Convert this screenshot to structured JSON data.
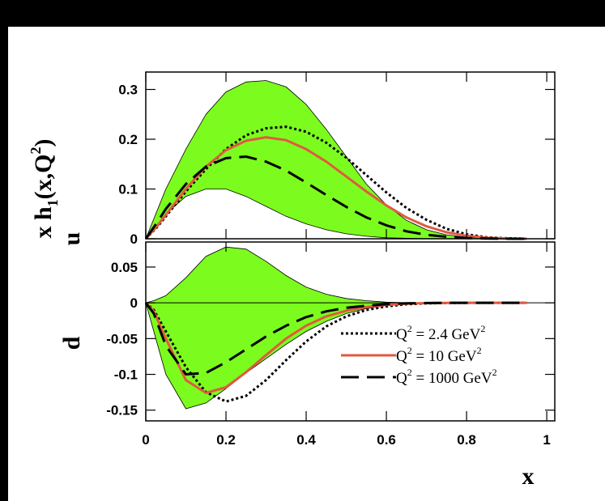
{
  "chart_data": {
    "type": "line",
    "xlabel": "x",
    "x_ticks": [
      "0",
      "0.2",
      "0.4",
      "0.6",
      "0.8",
      "1"
    ],
    "xlim": [
      0,
      1.02
    ],
    "colors": {
      "band": "#7CFC1E",
      "band_edge": "#000000",
      "q2_2_4": "#000000",
      "q2_10": "#E05A40",
      "q2_1000": "#000000"
    },
    "legend": {
      "position": "bottom-right of lower panel",
      "entries": [
        {
          "q": "Q",
          "exp": "2",
          "rest": " = 2.4 GeV",
          "rest_exp": "2",
          "style": "dotted"
        },
        {
          "q": "Q",
          "exp": "2",
          "rest": " = 10 GeV",
          "rest_exp": "2",
          "style": "solid"
        },
        {
          "q": "Q",
          "exp": "2",
          "rest": " = 1000 GeV",
          "rest_exp": "2",
          "style": "dashed"
        }
      ]
    },
    "panels": [
      {
        "id": "u",
        "ylabel_main": "x h",
        "ylabel_sub": "1",
        "ylabel_args": "(x,Q",
        "ylabel_exp": "2",
        "ylabel_close": ")",
        "ylabel_flavor": "u",
        "ylim": [
          0,
          0.335
        ],
        "y_ticks": [
          "0",
          "0.1",
          "0.2",
          "0.3"
        ],
        "band": {
          "x": [
            0,
            0.02,
            0.05,
            0.1,
            0.15,
            0.2,
            0.25,
            0.3,
            0.35,
            0.4,
            0.45,
            0.5,
            0.55,
            0.6,
            0.65,
            0.7,
            0.75,
            0.8,
            0.85,
            0.9,
            0.95
          ],
          "upper": [
            0,
            0.04,
            0.1,
            0.18,
            0.25,
            0.295,
            0.315,
            0.318,
            0.305,
            0.27,
            0.22,
            0.165,
            0.11,
            0.068,
            0.037,
            0.018,
            0.008,
            0.003,
            0.001,
            0.0003,
            0
          ],
          "lower": [
            0,
            0.02,
            0.05,
            0.085,
            0.1,
            0.1,
            0.085,
            0.065,
            0.045,
            0.03,
            0.018,
            0.01,
            0.005,
            0.002,
            0.001,
            0.0003,
            0.0001,
            0,
            0,
            0,
            0
          ]
        },
        "series": [
          {
            "key": "q2_2_4",
            "style": "dotted",
            "x": [
              0,
              0.03,
              0.05,
              0.1,
              0.15,
              0.2,
              0.25,
              0.3,
              0.35,
              0.4,
              0.45,
              0.5,
              0.55,
              0.6,
              0.65,
              0.7,
              0.75,
              0.8,
              0.85,
              0.9,
              0.95
            ],
            "y": [
              0,
              0.025,
              0.045,
              0.095,
              0.14,
              0.18,
              0.208,
              0.222,
              0.225,
              0.215,
              0.193,
              0.163,
              0.128,
              0.093,
              0.062,
              0.038,
              0.02,
              0.009,
              0.003,
              0.001,
              0
            ]
          },
          {
            "key": "q2_10",
            "style": "solid",
            "x": [
              0,
              0.03,
              0.05,
              0.1,
              0.15,
              0.2,
              0.25,
              0.3,
              0.35,
              0.4,
              0.45,
              0.5,
              0.55,
              0.6,
              0.65,
              0.7,
              0.75,
              0.8,
              0.85,
              0.9,
              0.95
            ],
            "y": [
              0,
              0.027,
              0.048,
              0.1,
              0.145,
              0.178,
              0.197,
              0.204,
              0.198,
              0.18,
              0.155,
              0.125,
              0.095,
              0.067,
              0.043,
              0.025,
              0.013,
              0.006,
              0.002,
              0.0005,
              0
            ]
          },
          {
            "key": "q2_1000",
            "style": "dashed",
            "x": [
              0,
              0.03,
              0.05,
              0.1,
              0.15,
              0.2,
              0.25,
              0.3,
              0.35,
              0.4,
              0.45,
              0.5,
              0.55,
              0.6,
              0.65,
              0.7,
              0.75,
              0.8,
              0.85,
              0.9,
              0.95
            ],
            "y": [
              0,
              0.035,
              0.06,
              0.11,
              0.145,
              0.162,
              0.165,
              0.155,
              0.137,
              0.113,
              0.088,
              0.064,
              0.043,
              0.027,
              0.015,
              0.008,
              0.004,
              0.0015,
              0.0005,
              0.0001,
              0
            ]
          }
        ]
      },
      {
        "id": "d",
        "ylabel_flavor": "d",
        "ylim": [
          -0.165,
          0.085
        ],
        "y_ticks": [
          "0.05",
          "0",
          "-0.05",
          "-0.1",
          "-0.15"
        ],
        "y_tick_values": [
          0.05,
          0,
          -0.05,
          -0.1,
          -0.15
        ],
        "band": {
          "x": [
            0,
            0.02,
            0.05,
            0.1,
            0.15,
            0.2,
            0.25,
            0.3,
            0.35,
            0.4,
            0.45,
            0.5,
            0.55,
            0.6,
            0.65,
            0.7,
            0.75,
            0.8,
            0.85,
            0.9,
            0.95
          ],
          "upper": [
            0,
            0.003,
            0.01,
            0.035,
            0.065,
            0.078,
            0.075,
            0.058,
            0.038,
            0.022,
            0.012,
            0.006,
            0.003,
            0.001,
            0.0003,
            0.0001,
            0,
            0,
            0,
            0,
            0
          ],
          "lower": [
            0,
            -0.04,
            -0.1,
            -0.148,
            -0.14,
            -0.12,
            -0.098,
            -0.078,
            -0.058,
            -0.04,
            -0.026,
            -0.015,
            -0.008,
            -0.004,
            -0.0015,
            -0.0005,
            -0.0001,
            0,
            0,
            0,
            0
          ]
        },
        "series": [
          {
            "key": "q2_2_4",
            "style": "dotted",
            "x": [
              0,
              0.02,
              0.05,
              0.1,
              0.15,
              0.2,
              0.25,
              0.3,
              0.35,
              0.4,
              0.45,
              0.5,
              0.55,
              0.6,
              0.65,
              0.7,
              0.75,
              0.8,
              0.85,
              0.9,
              0.95
            ],
            "y": [
              0,
              -0.01,
              -0.04,
              -0.09,
              -0.125,
              -0.138,
              -0.13,
              -0.108,
              -0.08,
              -0.054,
              -0.033,
              -0.019,
              -0.01,
              -0.005,
              -0.002,
              -0.0008,
              -0.0003,
              -0.0001,
              0,
              0,
              0
            ]
          },
          {
            "key": "q2_10",
            "style": "solid",
            "x": [
              0,
              0.02,
              0.05,
              0.1,
              0.15,
              0.2,
              0.25,
              0.3,
              0.35,
              0.4,
              0.45,
              0.5,
              0.55,
              0.6,
              0.65,
              0.7,
              0.75,
              0.8,
              0.85,
              0.9,
              0.95
            ],
            "y": [
              0,
              -0.012,
              -0.05,
              -0.108,
              -0.126,
              -0.118,
              -0.097,
              -0.073,
              -0.05,
              -0.032,
              -0.019,
              -0.011,
              -0.006,
              -0.003,
              -0.0012,
              -0.0004,
              -0.0001,
              0,
              0,
              0,
              0
            ]
          },
          {
            "key": "q2_1000",
            "style": "dashed",
            "x": [
              0,
              0.02,
              0.05,
              0.1,
              0.15,
              0.2,
              0.25,
              0.3,
              0.35,
              0.4,
              0.45,
              0.5,
              0.55,
              0.6,
              0.65,
              0.7,
              0.75,
              0.8,
              0.85,
              0.9,
              0.95
            ],
            "y": [
              0,
              -0.015,
              -0.06,
              -0.1,
              -0.098,
              -0.083,
              -0.065,
              -0.047,
              -0.032,
              -0.02,
              -0.012,
              -0.007,
              -0.004,
              -0.002,
              -0.0008,
              -0.0003,
              -0.0001,
              0,
              0,
              0,
              0
            ]
          }
        ]
      }
    ]
  }
}
